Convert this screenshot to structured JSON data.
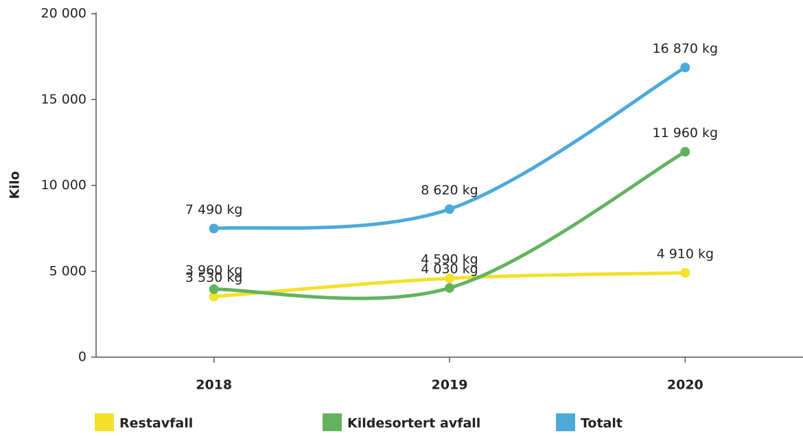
{
  "chart_data": {
    "type": "line",
    "y_label": "Kilo",
    "categories": [
      "2018",
      "2019",
      "2020"
    ],
    "series": [
      {
        "name": "Restavfall",
        "color": "#f3e12b",
        "values": [
          3530,
          4590,
          4910
        ],
        "value_labels": [
          "3 530 kg",
          "4 590 kg",
          "4 910 kg"
        ]
      },
      {
        "name": "Kildesortert avfall",
        "color": "#62b35e",
        "values": [
          3960,
          4030,
          11960
        ],
        "value_labels": [
          "3 960 kg",
          "4 030 kg",
          "11 960 kg"
        ]
      },
      {
        "name": "Totalt",
        "color": "#4ca9da",
        "values": [
          7490,
          8620,
          16870
        ],
        "value_labels": [
          "7 490 kg",
          "8 620 kg",
          "16 870 kg"
        ]
      }
    ],
    "ylim": [
      0,
      20000
    ],
    "yticks": [
      0,
      {
        "value": 5000,
        "label": "5 000"
      },
      {
        "value": 10000,
        "label": "10 000"
      },
      {
        "value": 15000,
        "label": "15 000"
      },
      {
        "value": 20000,
        "label": "20 000"
      }
    ],
    "grid": false,
    "legend": "bottom"
  }
}
